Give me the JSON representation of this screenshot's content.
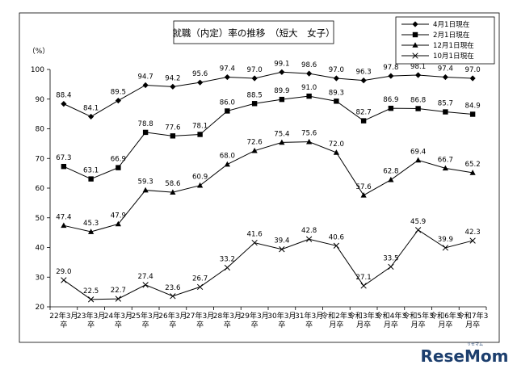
{
  "chart_data": {
    "type": "line",
    "title": "就職（内定）率の推移　（短大　女子）",
    "ylabel": "（%）",
    "ylim": [
      20,
      100
    ],
    "yticks": [
      20,
      30,
      40,
      50,
      60,
      70,
      80,
      90,
      100
    ],
    "grid": false,
    "legend_position": "top-right",
    "categories": [
      [
        "22年3月",
        "卒"
      ],
      [
        "23年3月",
        "卒"
      ],
      [
        "24年3月",
        "卒"
      ],
      [
        "25年3月",
        "卒"
      ],
      [
        "26年3月",
        "卒"
      ],
      [
        "27年3月",
        "卒"
      ],
      [
        "28年3月",
        "卒"
      ],
      [
        "29年3月",
        "卒"
      ],
      [
        "30年3月",
        "卒"
      ],
      [
        "31年3月",
        "卒"
      ],
      [
        "令和2年3",
        "月卒"
      ],
      [
        "令和3年3",
        "月卒"
      ],
      [
        "令和4年3",
        "月卒"
      ],
      [
        "令和5年3",
        "月卒"
      ],
      [
        "令和6年3",
        "月卒"
      ],
      [
        "令和7年3",
        "月卒"
      ]
    ],
    "series": [
      {
        "name": "4月1日現在",
        "marker": "diamond",
        "values": [
          88.4,
          84.1,
          89.5,
          94.7,
          94.2,
          95.6,
          97.4,
          97.0,
          99.1,
          98.6,
          97.0,
          96.3,
          97.8,
          98.1,
          97.4,
          97.0
        ],
        "labels": [
          "88.4",
          "84.1",
          "89.5",
          "94.7",
          "94.2",
          "95.6",
          "97.4",
          "97.0",
          "99.1",
          "98.6",
          "97.0",
          "96.3",
          "97.8",
          "98.1",
          "97.4",
          "97.0"
        ]
      },
      {
        "name": "2月1日現在",
        "marker": "square",
        "values": [
          67.3,
          63.1,
          66.9,
          78.8,
          77.6,
          78.1,
          86.0,
          88.5,
          89.9,
          91.0,
          89.3,
          82.7,
          86.9,
          86.8,
          85.7,
          84.9
        ],
        "labels": [
          "67.3",
          "63.1",
          "66.9",
          "78.8",
          "77.6",
          "78.1",
          "86.0",
          "88.5",
          "89.9",
          "91.0",
          "89.3",
          "82.7",
          "86.9",
          "86.8",
          "85.7",
          "84.9"
        ]
      },
      {
        "name": "12月1日現在",
        "marker": "triangle",
        "values": [
          47.4,
          45.3,
          47.9,
          59.3,
          58.6,
          60.9,
          68.0,
          72.6,
          75.4,
          75.6,
          72.0,
          57.6,
          62.8,
          69.4,
          66.7,
          65.2
        ],
        "labels": [
          "47.4",
          "45.3",
          "47.9",
          "59.3",
          "58.6",
          "60.9",
          "68.0",
          "72.6",
          "75.4",
          "75.6",
          "72.0",
          "57.6",
          "62.8",
          "69.4",
          "66.7",
          "65.2"
        ]
      },
      {
        "name": "10月1日現在",
        "marker": "x",
        "values": [
          29.0,
          22.5,
          22.7,
          27.4,
          23.6,
          26.7,
          33.2,
          41.6,
          39.4,
          42.8,
          40.6,
          27.1,
          33.5,
          45.9,
          39.9,
          42.3
        ],
        "labels": [
          "29.0",
          "22.5",
          "22.7",
          "27.4",
          "23.6",
          "26.7",
          "33.2",
          "41.6",
          "39.4",
          "42.8",
          "40.6",
          "27.1",
          "33.5",
          "45.9",
          "39.9",
          "42.3"
        ]
      }
    ]
  },
  "watermark": {
    "brand": "ReseMom",
    "kana": "リセマム"
  }
}
